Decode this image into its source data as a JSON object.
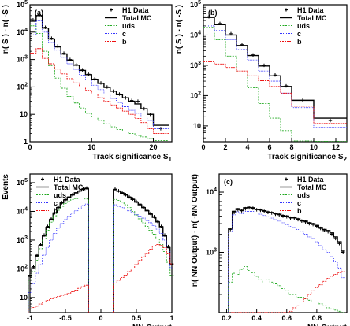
{
  "legend_entries": {
    "data": "H1 Data",
    "total": "Total MC",
    "uds": "uds",
    "c": "c",
    "b": "b"
  },
  "colors": {
    "data": "#000000",
    "total": "#000000",
    "uds": "#22aa22",
    "c": "#3333ff",
    "b": "#ee1111"
  },
  "chart_data": [
    {
      "type": "line",
      "panel_label": "(a)",
      "xlabel": "Track significance S",
      "xlabel_sub": "1",
      "ylabel": "n( S ) - n( -S )",
      "ylabel_sub": "1",
      "xlim": [
        0,
        23
      ],
      "ylim": [
        1,
        100000
      ],
      "yscale": "log",
      "x_ticks": [
        0,
        10,
        20
      ],
      "y_ticks": [
        1,
        10,
        100,
        1000,
        10000,
        100000
      ],
      "grid": false,
      "legend": "top-right",
      "edges": [
        0,
        1,
        2,
        3,
        4,
        5,
        6,
        7,
        8,
        9,
        10,
        11,
        12,
        13,
        14,
        15,
        16,
        17,
        18,
        19,
        20,
        22.5
      ],
      "series": [
        {
          "name": "H1 Data",
          "style": "points",
          "x": [
            0.5,
            1.5,
            2.5,
            3.5,
            4.5,
            5.5,
            6.5,
            7.5,
            8.5,
            9.5,
            10.5,
            11.5,
            12.5,
            13.5,
            14.5,
            15.5,
            16.5,
            17.5,
            18.5,
            19.5,
            21.2
          ],
          "values": [
            28000,
            42000,
            15000,
            6000,
            3100,
            1700,
            1000,
            650,
            420,
            290,
            195,
            140,
            100,
            70,
            55,
            40,
            32,
            30,
            16,
            10,
            3
          ]
        },
        {
          "name": "Total MC",
          "style": "step",
          "values": [
            25000,
            40000,
            14000,
            5600,
            2900,
            1600,
            950,
            620,
            400,
            280,
            190,
            135,
            96,
            70,
            52,
            40,
            30,
            24,
            16,
            10,
            4
          ]
        },
        {
          "name": "uds",
          "style": "step",
          "values": [
            17000,
            9000,
            2000,
            600,
            210,
            90,
            45,
            26,
            17,
            11,
            8,
            6,
            4.5,
            3.5,
            2.8,
            2.3,
            2,
            1.7,
            1.5,
            1.3,
            1.1
          ]
        },
        {
          "name": "c",
          "style": "step",
          "values": [
            8000,
            26000,
            10000,
            4200,
            2200,
            1200,
            700,
            440,
            270,
            180,
            115,
            80,
            55,
            38,
            27,
            19,
            14,
            11,
            8,
            6,
            3
          ]
        },
        {
          "name": "b",
          "style": "step",
          "values": [
            1700,
            2500,
            1100,
            700,
            450,
            300,
            200,
            140,
            100,
            75,
            55,
            40,
            30,
            22,
            17,
            13,
            10,
            7,
            5,
            3,
            2
          ]
        }
      ]
    },
    {
      "type": "line",
      "panel_label": "(b)",
      "xlabel": "Track significance S",
      "xlabel_sub": "2",
      "ylabel": "n( S ) - n( -S )",
      "ylabel_sub": "2",
      "xlim": [
        0,
        13
      ],
      "ylim": [
        3,
        100000
      ],
      "yscale": "log",
      "x_ticks": [
        0,
        2,
        4,
        6,
        8,
        10,
        12
      ],
      "y_ticks": [
        10,
        100,
        1000,
        10000,
        100000
      ],
      "grid": false,
      "legend": "top-right",
      "edges": [
        0,
        1,
        2,
        3,
        4,
        5,
        6,
        7,
        8,
        10,
        13
      ],
      "series": [
        {
          "name": "H1 Data",
          "style": "points",
          "x": [
            0.5,
            1.5,
            2.5,
            3.5,
            4.5,
            5.5,
            6.5,
            7.5,
            9,
            11.5
          ],
          "values": [
            40000,
            24000,
            11000,
            4800,
            2200,
            1000,
            480,
            210,
            70,
            15
          ]
        },
        {
          "name": "Total MC",
          "style": "step",
          "values": [
            38000,
            22000,
            10000,
            4500,
            2100,
            950,
            450,
            200,
            70,
            18
          ]
        },
        {
          "name": "uds",
          "style": "step",
          "values": [
            18000,
            7000,
            2000,
            600,
            180,
            55,
            18,
            7,
            3.2,
            3.1
          ]
        },
        {
          "name": "c",
          "style": "step",
          "values": [
            20000,
            14000,
            7000,
            3300,
            1500,
            650,
            300,
            120,
            40,
            9
          ]
        },
        {
          "name": "b",
          "style": "step",
          "values": [
            1300,
            1100,
            850,
            650,
            450,
            310,
            200,
            120,
            45,
            12
          ]
        }
      ]
    },
    {
      "type": "line",
      "panel_label": "",
      "xlabel": "NN Output",
      "ylabel": "Events",
      "xlim": [
        -1,
        1
      ],
      "ylim": [
        3,
        200000
      ],
      "yscale": "log",
      "x_ticks": [
        -1,
        -0.5,
        0,
        0.5,
        1
      ],
      "x_tick_labels": [
        "-1",
        "-0.5",
        "0",
        "0.5",
        "1"
      ],
      "y_ticks": [
        10,
        100,
        1000,
        10000,
        100000
      ],
      "grid": false,
      "legend": "top-left",
      "x": [
        -1.0,
        -0.95,
        -0.9,
        -0.85,
        -0.8,
        -0.75,
        -0.7,
        -0.65,
        -0.6,
        -0.55,
        -0.5,
        -0.45,
        -0.4,
        -0.35,
        -0.3,
        -0.25,
        -0.2,
        0.2,
        0.25,
        0.3,
        0.35,
        0.4,
        0.45,
        0.5,
        0.55,
        0.6,
        0.65,
        0.7,
        0.75,
        0.8,
        0.85,
        0.9,
        0.95,
        1.0
      ],
      "series": [
        {
          "name": "H1 Data",
          "style": "points",
          "values": [
            60,
            120,
            300,
            700,
            1500,
            3000,
            5500,
            9000,
            14000,
            20000,
            26000,
            32000,
            38000,
            45000,
            52000,
            60000,
            65000,
            60000,
            52000,
            45000,
            38000,
            32000,
            27000,
            22000,
            18000,
            14000,
            11000,
            8500,
            6500,
            4500,
            3000,
            1500,
            600,
            150
          ]
        },
        {
          "name": "Total MC",
          "style": "step",
          "values": [
            55,
            110,
            280,
            650,
            1400,
            2800,
            5200,
            8800,
            13500,
            19500,
            25000,
            31000,
            37000,
            44000,
            51000,
            58000,
            63000,
            58000,
            50000,
            43000,
            37000,
            31000,
            26000,
            21000,
            17000,
            13500,
            10500,
            8000,
            6200,
            4300,
            2900,
            1400,
            550,
            140
          ]
        },
        {
          "name": "uds",
          "style": "step",
          "values": [
            40,
            80,
            200,
            500,
            1100,
            2200,
            4200,
            7000,
            11000,
            15000,
            19000,
            23000,
            26000,
            28000,
            29000,
            29000,
            27000,
            26000,
            24000,
            21000,
            17000,
            13500,
            10000,
            7500,
            5500,
            4000,
            3000,
            2200,
            1600,
            1100,
            700,
            400,
            170,
            60
          ]
        },
        {
          "name": "c",
          "style": "step",
          "values": [
            15,
            30,
            70,
            140,
            300,
            560,
            1000,
            1700,
            2600,
            3800,
            5200,
            6800,
            8500,
            10500,
            13000,
            16000,
            18000,
            17000,
            15000,
            13500,
            12000,
            10500,
            9000,
            7800,
            6800,
            5800,
            4800,
            4000,
            3200,
            2400,
            1700,
            1000,
            450,
            110
          ]
        },
        {
          "name": "b",
          "style": "step",
          "values": [
            4,
            4.5,
            5,
            6,
            7,
            8,
            9,
            10,
            11,
            12,
            13,
            14,
            16,
            18,
            21,
            24,
            27,
            32,
            40,
            50,
            60,
            80,
            100,
            140,
            200,
            260,
            350,
            480,
            620,
            700,
            650,
            550,
            350,
            150
          ]
        }
      ]
    },
    {
      "type": "line",
      "panel_label": "(c)",
      "xlabel": "NN Output",
      "ylabel": "n( NN Output) - n( -NN Output)",
      "xlim": [
        0.15,
        1.0
      ],
      "ylim": [
        100,
        20000
      ],
      "yscale": "log",
      "x_ticks": [
        0.2,
        0.4,
        0.6,
        0.8
      ],
      "y_ticks": [
        1000,
        10000
      ],
      "grid": false,
      "legend": "top-right",
      "x": [
        0.225,
        0.25,
        0.275,
        0.3,
        0.325,
        0.35,
        0.375,
        0.4,
        0.425,
        0.45,
        0.475,
        0.5,
        0.525,
        0.55,
        0.575,
        0.6,
        0.625,
        0.65,
        0.675,
        0.7,
        0.725,
        0.75,
        0.775,
        0.8,
        0.825,
        0.85,
        0.875,
        0.9,
        0.925,
        0.95,
        0.975
      ],
      "series": [
        {
          "name": "H1 Data",
          "style": "points",
          "values": [
            2400,
            4600,
            5100,
            4900,
            5300,
            5500,
            5400,
            5100,
            5000,
            4800,
            4600,
            4500,
            4300,
            4200,
            4000,
            3900,
            3700,
            3700,
            3500,
            3300,
            3200,
            3000,
            2900,
            2700,
            2500,
            2300,
            2200,
            2000,
            1700,
            1400,
            1000
          ]
        },
        {
          "name": "Total MC",
          "style": "step",
          "values": [
            2500,
            4800,
            5300,
            5000,
            5500,
            5600,
            5500,
            5200,
            5100,
            4900,
            4700,
            4600,
            4400,
            4300,
            4100,
            4000,
            3800,
            3800,
            3600,
            3400,
            3300,
            3100,
            3000,
            2800,
            2600,
            2400,
            2300,
            2100,
            1800,
            1500,
            1050
          ]
        },
        {
          "name": "uds",
          "style": "step",
          "values": [
            320,
            450,
            430,
            520,
            580,
            500,
            460,
            400,
            350,
            310,
            350,
            320,
            300,
            280,
            250,
            230,
            200,
            200,
            180,
            180,
            170,
            160,
            150,
            150,
            140,
            130,
            120,
            115,
            110,
            105,
            100
          ]
        },
        {
          "name": "c",
          "style": "step",
          "values": [
            2200,
            4200,
            4700,
            4400,
            4800,
            4800,
            4800,
            4500,
            4300,
            4100,
            3900,
            3700,
            3500,
            3300,
            3100,
            2900,
            2700,
            2600,
            2400,
            2200,
            2000,
            1800,
            1700,
            1500,
            1300,
            1100,
            1000,
            850,
            700,
            550,
            380
          ]
        },
        {
          "name": "b",
          "style": "step",
          "values": [
            100,
            100,
            100,
            100,
            100,
            100,
            100,
            100,
            100,
            100,
            100,
            100,
            100,
            100,
            100,
            100,
            105,
            120,
            130,
            150,
            170,
            200,
            230,
            260,
            290,
            330,
            370,
            400,
            430,
            460,
            480
          ]
        }
      ]
    }
  ]
}
